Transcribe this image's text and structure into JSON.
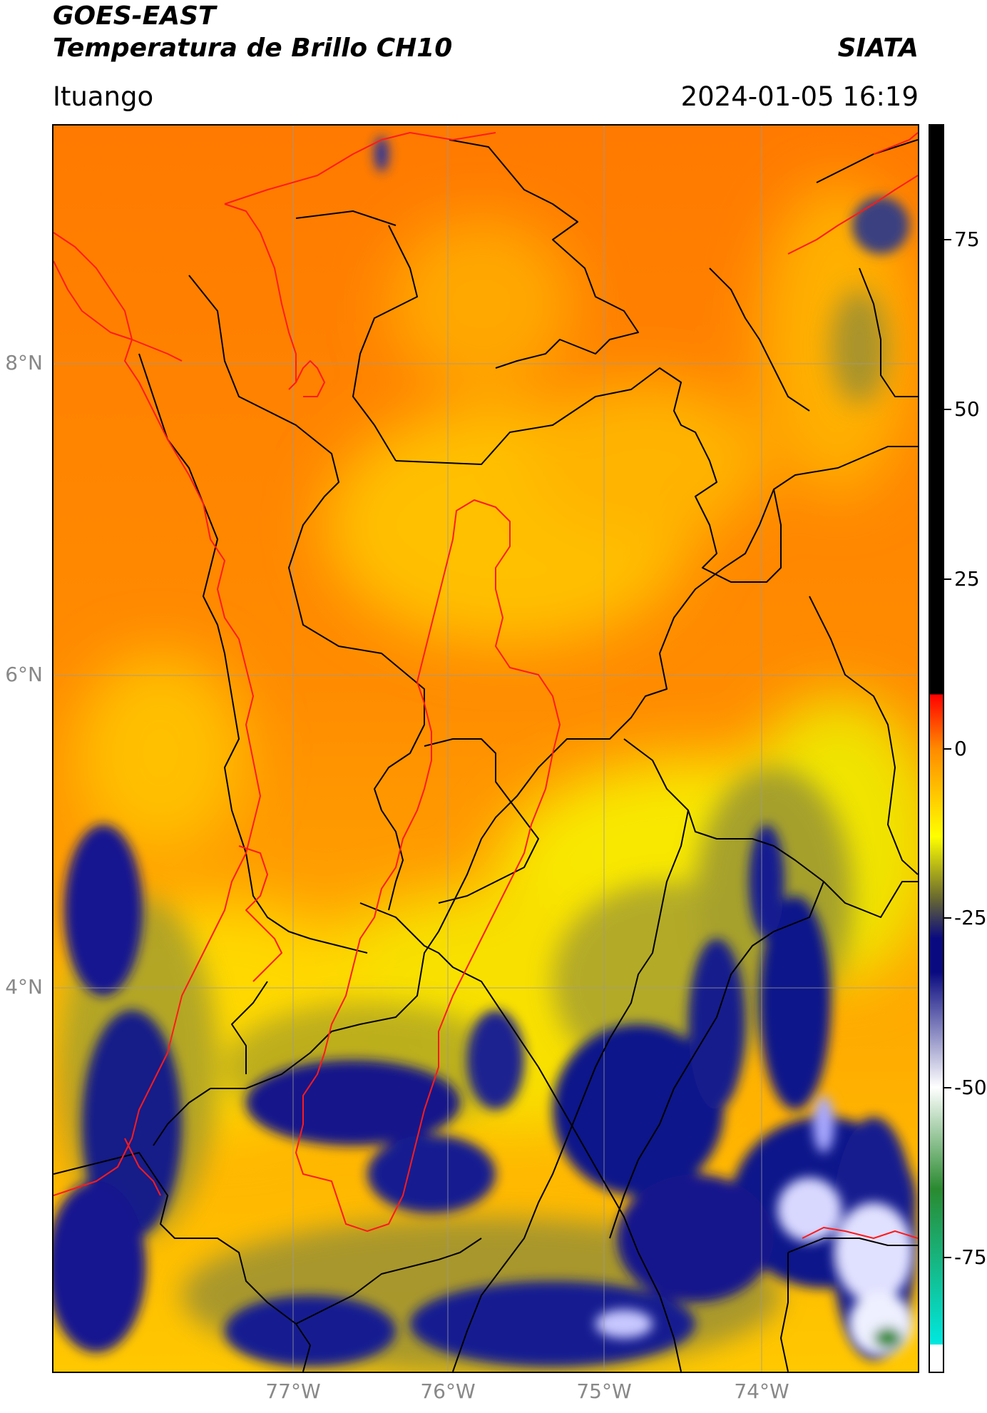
{
  "header": {
    "satellite": "GOES-EAST",
    "product": "Temperatura de Brillo CH10",
    "brand": "SIATA",
    "location": "Ituango",
    "datetime": "2024-01-05 16:19"
  },
  "map": {
    "lat_labels": [
      "8°N",
      "6°N",
      "4°N"
    ],
    "lon_labels": [
      "77°W",
      "76°W",
      "75°W",
      "74°W"
    ]
  },
  "colorbar": {
    "ticks": [
      "75",
      "50",
      "25",
      "0",
      "-25",
      "-50",
      "-75"
    ],
    "tick_values": [
      75,
      50,
      25,
      0,
      -25,
      -50,
      -75
    ],
    "range": [
      -92,
      92
    ],
    "colors": {
      "black": "#000000",
      "red": "#ff0000",
      "orange": "#ff8a00",
      "yellow": "#ffff00",
      "olive": "#6a6a30",
      "navy": "#0a0a80",
      "white": "#ffffff",
      "green": "#2a8a30",
      "cyan": "#00e8e0"
    }
  }
}
